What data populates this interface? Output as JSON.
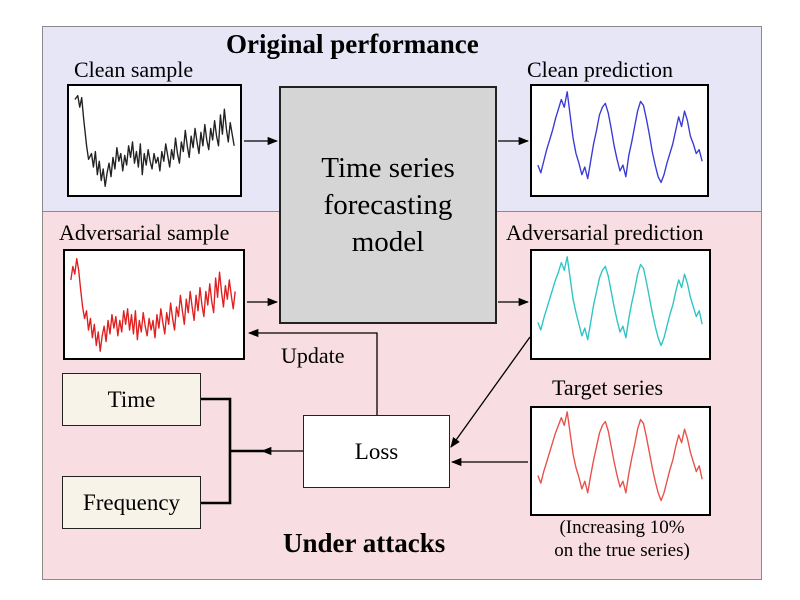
{
  "headings": {
    "original": "Original performance",
    "attack": "Under attacks"
  },
  "labels": {
    "clean_sample": "Clean sample",
    "clean_prediction": "Clean prediction",
    "adversarial_sample": "Adversarial sample",
    "adversarial_prediction": "Adversarial prediction",
    "target_series": "Target series",
    "update": "Update"
  },
  "model": {
    "line1": "Time series",
    "line2": "forecasting",
    "line3": "model"
  },
  "boxes": {
    "time": "Time",
    "frequency": "Frequency",
    "loss": "Loss"
  },
  "target_note": {
    "line1": "(Increasing 10%",
    "line2": "on the true series)"
  },
  "colors": {
    "top_panel": "#e6e6f7",
    "bottom_panel": "#f8dde2",
    "clean_sample_line": "#222222",
    "clean_prediction_line": "#3a3ad6",
    "adversarial_sample_line": "#e02020",
    "adversarial_prediction_line": "#2ec4c4",
    "target_series_line": "#e8504a"
  }
}
